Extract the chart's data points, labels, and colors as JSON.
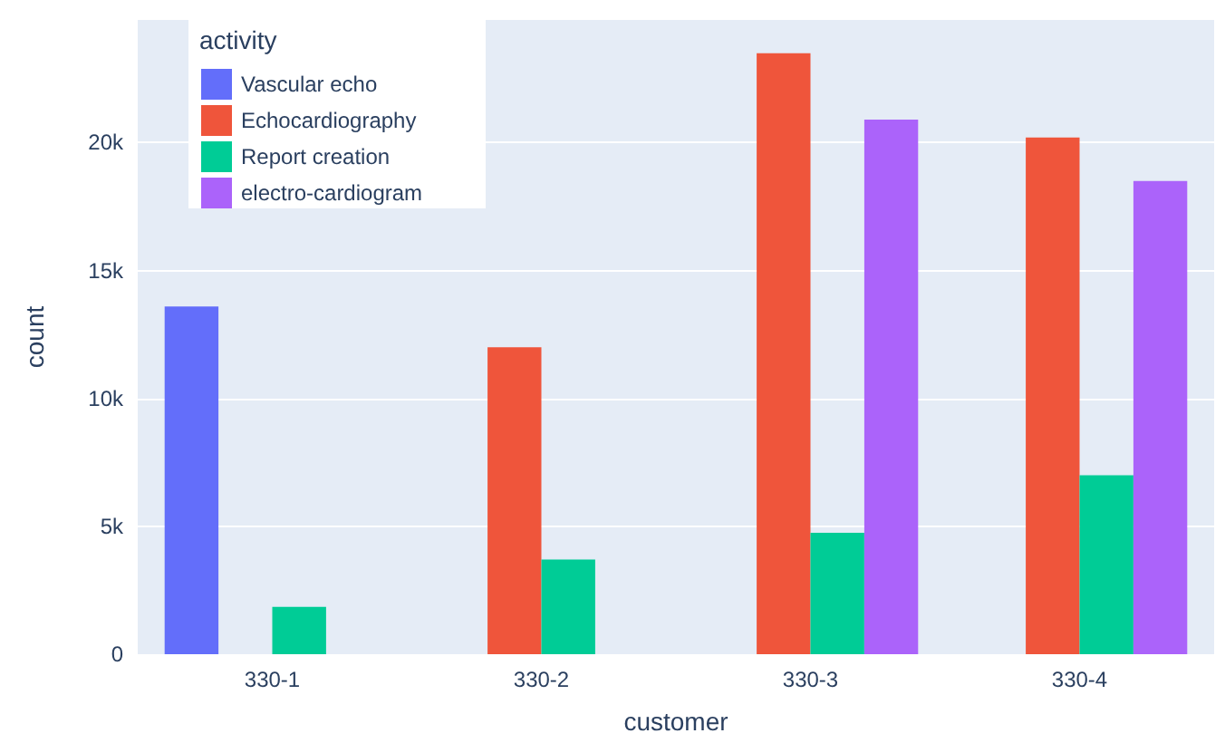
{
  "chart_data": {
    "type": "bar",
    "xlabel": "customer",
    "ylabel": "count",
    "legend_title": "activity",
    "legend": "top left",
    "grid": "y",
    "categories": [
      "330-1",
      "330-2",
      "330-3",
      "330-4"
    ],
    "series": [
      {
        "name": "Vascular echo",
        "color": "#636efa",
        "values": [
          13600,
          null,
          null,
          null
        ]
      },
      {
        "name": "Echocardiography",
        "color": "#ef553b",
        "values": [
          null,
          12000,
          23500,
          20200
        ]
      },
      {
        "name": "Report creation",
        "color": "#00cc96",
        "values": [
          1850,
          3700,
          4750,
          7000
        ]
      },
      {
        "name": "electro-cardiogram",
        "color": "#ab63fa",
        "values": [
          null,
          null,
          20900,
          18500
        ]
      }
    ],
    "ylim": [
      0,
      24800
    ],
    "yticks": [
      0,
      {
        "value": 5000,
        "label": "5k"
      },
      {
        "value": 10000,
        "label": "10k"
      },
      {
        "value": 15000,
        "label": "15k"
      },
      {
        "value": 20000,
        "label": "20k"
      }
    ]
  }
}
